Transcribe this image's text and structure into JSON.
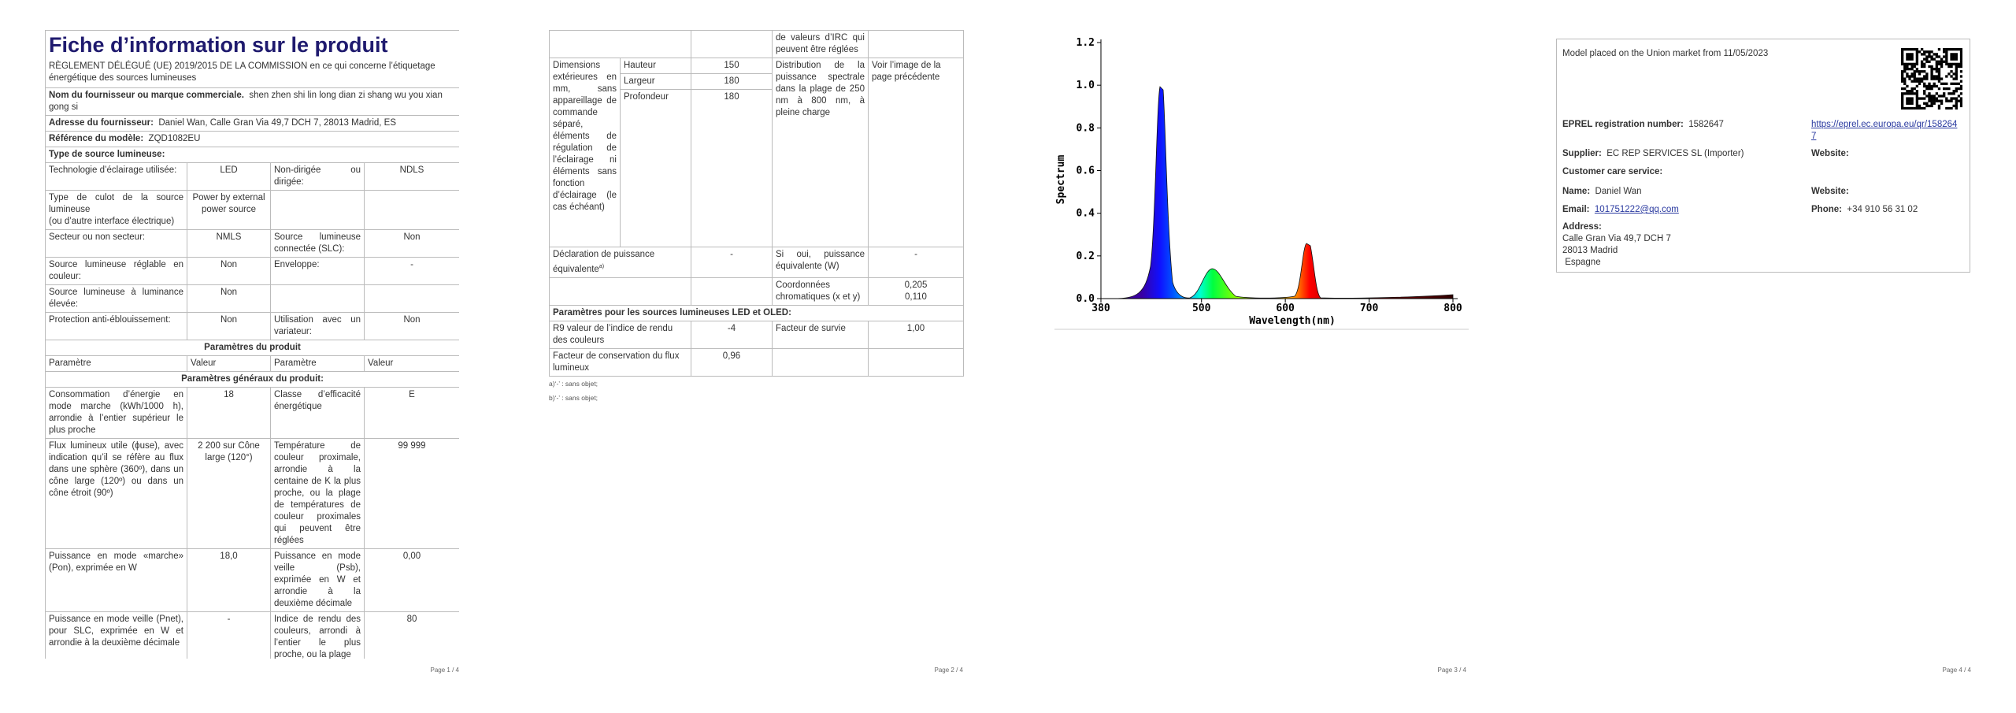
{
  "page1": {
    "title": "Fiche d’information sur le produit",
    "regulation": "RÈGLEMENT DÉLÉGUÉ (UE) 2019/2015 DE LA COMMISSION en ce qui concerne l’étiquetage énergétique des sources lumineuses",
    "supplier": {
      "label": "Nom du fournisseur ou marque commerciale.",
      "value": "shen zhen shi lin long dian zi shang wu you xian gong si"
    },
    "address": {
      "label": "Adresse du fournisseur:",
      "value": "Daniel Wan, Calle Gran Via 49,7 DCH 7, 28013 Madrid, ES"
    },
    "model": {
      "label": "Référence du modèle:",
      "value": "ZQD1082EU"
    },
    "type_heading": "Type de source lumineuse:",
    "type_rows": [
      [
        "Technologie d’éclairage utilisée:",
        "LED",
        "Non-dirigée ou dirigée:",
        "NDLS"
      ],
      [
        "Type de culot de la source lumineuse\n(ou d’autre interface électrique)",
        "Power by external power source",
        null,
        null
      ],
      [
        "Secteur ou non secteur:",
        "NMLS",
        "Source lumineuse connectée (SLC):",
        "Non"
      ],
      [
        "Source lumineuse réglable en couleur:",
        "Non",
        "Enveloppe:",
        "-"
      ],
      [
        "Source lumineuse à luminance élevée:",
        "Non",
        null,
        null
      ],
      [
        "Protection anti-éblouissement:",
        "Non",
        "Utilisation avec un variateur:",
        "Non"
      ]
    ],
    "params_heading": "Paramètres du produit",
    "params_header": [
      "Paramètre",
      "Valeur",
      "Paramètre",
      "Valeur"
    ],
    "general_heading": "Paramètres généraux du produit:",
    "general_rows": [
      [
        "Consommation d’énergie en mode marche (kWh/1000 h), arrondie à l’entier supérieur le plus proche",
        "18",
        "Classe d’efficacité énergétique",
        "E"
      ],
      [
        "Flux lumineux utile (ϕuse), avec indication qu’il se réfère au flux dans une sphère (360º), dans un cône large (120º) ou dans un cône étroit (90º)",
        "2 200 sur Cône large (120°)",
        "Température de couleur proximale, arrondie à la centaine de K la plus proche, ou la plage de températures de couleur proximales qui peuvent être réglées",
        "99 999"
      ],
      [
        "Puissance en mode «marche» (Pon), exprimée en W",
        "18,0",
        "Puissance en mode veille (Psb), exprimée en W et arrondie à la deuxième décimale",
        "0,00"
      ],
      [
        "Puissance en mode veille (Pnet), pour SLC, exprimée en W et arrondie à la deuxième décimale",
        "-",
        "Indice de rendu des couleurs, arrondi à l’entier le plus proche, ou la plage",
        "80"
      ]
    ],
    "footer": "Page 1 / 4"
  },
  "page2": {
    "continuation": "de valeurs d’IRC qui peuvent être réglées",
    "dimensions": {
      "label": "Dimensions extérieures en mm, sans appareillage de commande séparé, éléments de régulation de l’éclairage ni éléments sans fonction d’éclairage (le cas échéant)",
      "rows": [
        [
          "Hauteur",
          "150"
        ],
        [
          "Largeur",
          "180"
        ],
        [
          "Profondeur",
          "180"
        ]
      ]
    },
    "spectral": {
      "label": "Distribution de la puissance spectrale dans la plage de 250 nm à 800 nm, à pleine charge",
      "value": "Voir l’image de la page précédente"
    },
    "equivalent": {
      "label": "Déclaration de puissance équivalente",
      "note": "a)",
      "value": "-",
      "label2": "Si oui, puissance équivalente (W)",
      "value2": "-"
    },
    "chromaticity": {
      "label": "Coordonnées chromatiques (x et y)",
      "value": "0,205\n0,110"
    },
    "led_heading": "Paramètres pour les sources lumineuses LED et OLED:",
    "led_rows": [
      [
        "R9 valeur de l’indice de rendu des couleurs",
        "-4",
        "Facteur de survie",
        "1,00"
      ],
      [
        "Facteur de conservation du flux lumineux",
        "0,96",
        null,
        null
      ]
    ],
    "notes": [
      "a)‘-’ : sans objet;",
      "b)‘-’ : sans objet;"
    ],
    "footer": "Page 2 / 4"
  },
  "page3": {
    "chart": {
      "xlabel": "Wavelength(nm)",
      "ylabel": "Spectrum",
      "xlim": [
        380,
        800
      ],
      "ylim": [
        0,
        1.2
      ],
      "xticks": [
        380,
        500,
        600,
        700,
        800
      ],
      "yticks": [
        {
          "value": 0,
          "label": "0.0"
        },
        0.2,
        0.4,
        0.6,
        0.8,
        {
          "value": 1,
          "label": "1.0"
        },
        1.2
      ]
    },
    "footer": "Page 3 / 4"
  },
  "page4": {
    "placed": "Model placed on the Union market from 11/05/2023",
    "eprel": {
      "label": "EPREL registration number:",
      "value": "1582647"
    },
    "link": "https://eprel.ec.europa.eu/qr/1582647",
    "supplier": {
      "label": "Supplier:",
      "value": "EC REP SERVICES SL (Importer)"
    },
    "website1": "Website:",
    "care": "Customer care service:",
    "name": {
      "label": "Name:",
      "value": "Daniel Wan"
    },
    "website2": "Website:",
    "email": {
      "label": "Email:",
      "value": "101751222@qq.com"
    },
    "phone": {
      "label": "Phone:",
      "value": "+34 910 56 31 02"
    },
    "address": {
      "label": "Address:",
      "lines": [
        "Calle Gran Via 49,7 DCH 7",
        "28013 Madrid",
        " Espagne"
      ]
    },
    "footer": "Page 4 / 4"
  }
}
